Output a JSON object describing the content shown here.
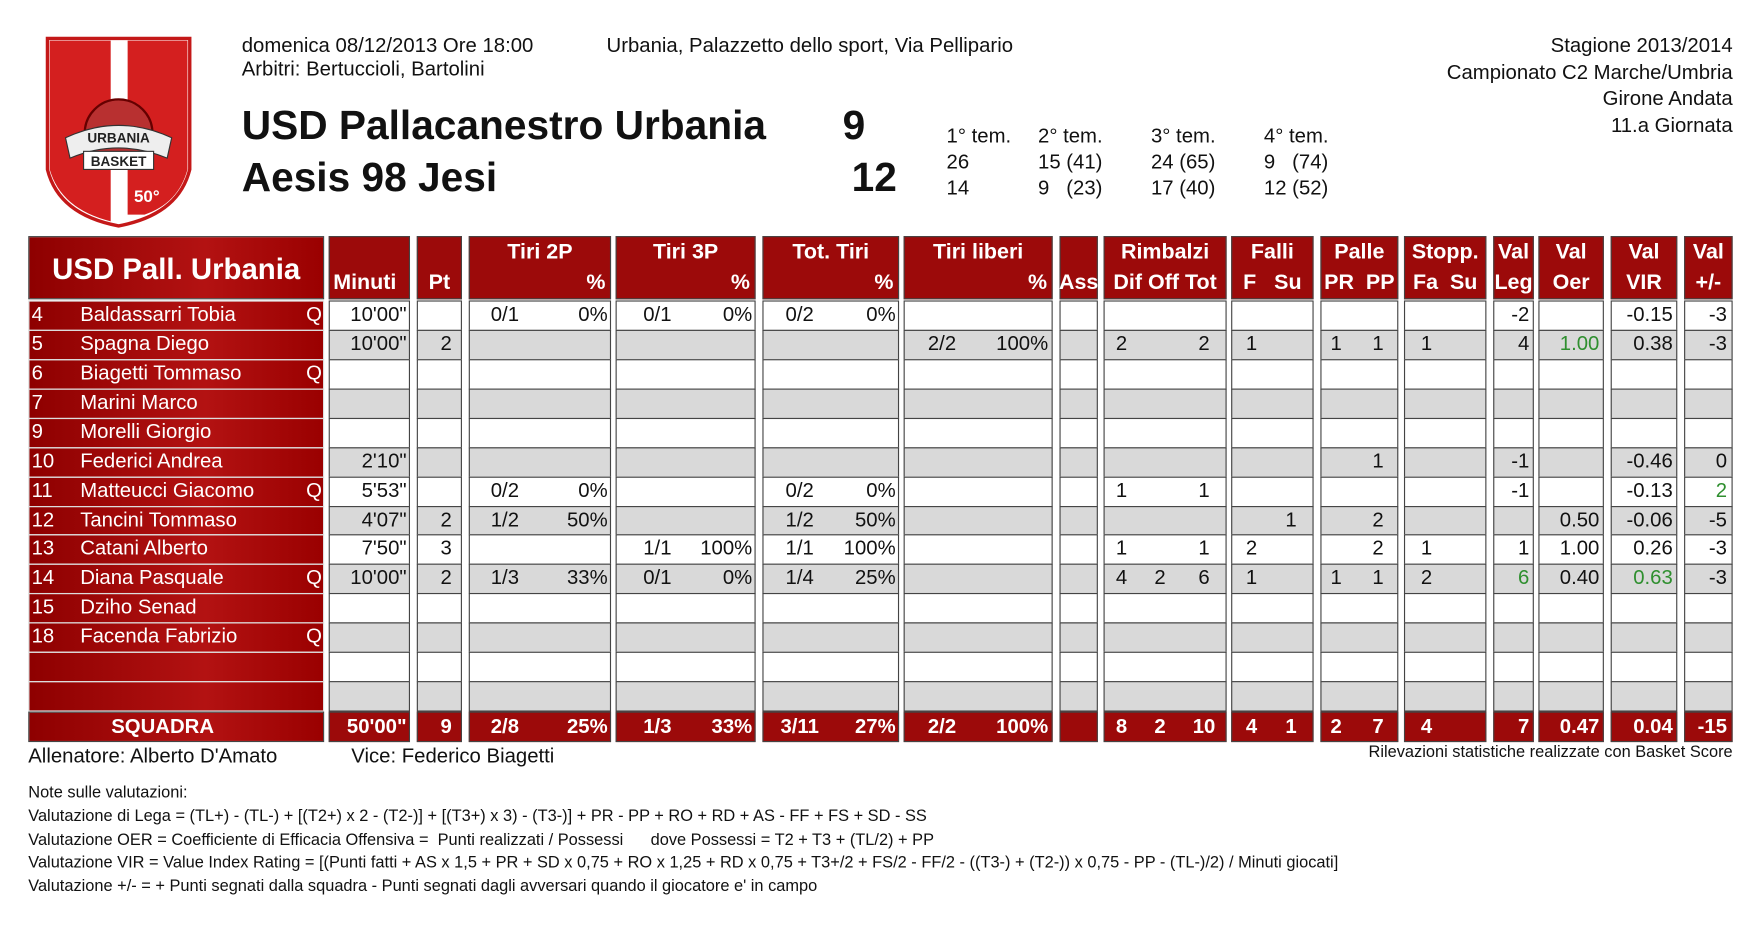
{
  "logo": {
    "top": "URBANIA",
    "bottom": "BASKET",
    "badge": "50°"
  },
  "header": {
    "datetime": "domenica 08/12/2013 Ore 18:00",
    "venue": "Urbania, Palazzetto dello sport, Via Pellipario",
    "referees": "Arbitri: Bertuccioli, Bartolini",
    "teams": [
      {
        "name": "USD Pallacanestro Urbania",
        "score": "9"
      },
      {
        "name": "Aesis 98 Jesi",
        "score": "12"
      }
    ],
    "quarters": {
      "labels": [
        "1° tem.",
        "2° tem.",
        "3° tem.",
        "4° tem."
      ],
      "rows": [
        [
          "26",
          "15 (41)",
          "24 (65)",
          "9   (74)"
        ],
        [
          "14",
          "9   (23)",
          "17 (40)",
          "12 (52)"
        ]
      ]
    },
    "season": [
      "Stagione 2013/2014",
      "Campionato C2 Marche/Umbria",
      "Girone Andata",
      "11.a Giornata"
    ]
  },
  "table": {
    "title": "USD Pall. Urbania",
    "columns": [
      {
        "sub": "Minuti"
      },
      {
        "sub": "Pt"
      },
      {
        "title": "Tiri 2P",
        "sub": "%"
      },
      {
        "title": "Tiri 3P",
        "sub": "%"
      },
      {
        "title": "Tot. Tiri",
        "sub": "%"
      },
      {
        "title": "Tiri liberi",
        "sub": "%"
      },
      {
        "sub": "Ass"
      },
      {
        "title": "Rimbalzi",
        "sub": "Dif Off Tot"
      },
      {
        "title": "Falli",
        "sub": "F   Su"
      },
      {
        "title": "Palle",
        "sub": "PR  PP"
      },
      {
        "title": "Stopp.",
        "sub": "Fa  Su"
      },
      {
        "title": "Val",
        "sub": "Leg"
      },
      {
        "title": "Val",
        "sub": "Oer"
      },
      {
        "title": "Val",
        "sub": "VIR"
      },
      {
        "title": "Val",
        "sub": "+/-"
      }
    ],
    "highlight_color": "#2f8f2f",
    "highlighted_cells": [
      [
        1,
        21
      ],
      [
        6,
        23
      ],
      [
        9,
        20
      ],
      [
        9,
        22
      ]
    ],
    "players": [
      {
        "number": "4",
        "name": "Baldassarri Tobia",
        "q": "Q",
        "stats": [
          "10'00\"",
          null,
          "0/1",
          "0%",
          "0/1",
          "0%",
          "0/2",
          "0%",
          null,
          null,
          null,
          null,
          null,
          null,
          null,
          null,
          null,
          null,
          null,
          null,
          "-2",
          null,
          "-0.15",
          "-3"
        ]
      },
      {
        "number": "5",
        "name": "Spagna Diego",
        "q": null,
        "stats": [
          "10'00\"",
          "2",
          null,
          null,
          null,
          null,
          null,
          null,
          "2/2",
          "100%",
          null,
          "2",
          null,
          "2",
          "1",
          null,
          "1",
          "1",
          "1",
          null,
          "4",
          "1.00",
          "0.38",
          "-3"
        ]
      },
      {
        "number": "6",
        "name": "Biagetti Tommaso",
        "q": "Q",
        "stats": [
          null,
          null,
          null,
          null,
          null,
          null,
          null,
          null,
          null,
          null,
          null,
          null,
          null,
          null,
          null,
          null,
          null,
          null,
          null,
          null,
          null,
          null,
          null,
          null
        ]
      },
      {
        "number": "7",
        "name": "Marini Marco",
        "q": null,
        "stats": [
          null,
          null,
          null,
          null,
          null,
          null,
          null,
          null,
          null,
          null,
          null,
          null,
          null,
          null,
          null,
          null,
          null,
          null,
          null,
          null,
          null,
          null,
          null,
          null
        ]
      },
      {
        "number": "9",
        "name": "Morelli Giorgio",
        "q": null,
        "stats": [
          null,
          null,
          null,
          null,
          null,
          null,
          null,
          null,
          null,
          null,
          null,
          null,
          null,
          null,
          null,
          null,
          null,
          null,
          null,
          null,
          null,
          null,
          null,
          null
        ]
      },
      {
        "number": "10",
        "name": "Federici Andrea",
        "q": null,
        "stats": [
          "2'10\"",
          null,
          null,
          null,
          null,
          null,
          null,
          null,
          null,
          null,
          null,
          null,
          null,
          null,
          null,
          null,
          null,
          "1",
          null,
          null,
          "-1",
          null,
          "-0.46",
          "0"
        ]
      },
      {
        "number": "11",
        "name": "Matteucci Giacomo",
        "q": "Q",
        "stats": [
          "5'53\"",
          null,
          "0/2",
          "0%",
          null,
          null,
          "0/2",
          "0%",
          null,
          null,
          null,
          "1",
          null,
          "1",
          null,
          null,
          null,
          null,
          null,
          null,
          "-1",
          null,
          "-0.13",
          "2"
        ]
      },
      {
        "number": "12",
        "name": "Tancini Tommaso",
        "q": null,
        "stats": [
          "4'07\"",
          "2",
          "1/2",
          "50%",
          null,
          null,
          "1/2",
          "50%",
          null,
          null,
          null,
          null,
          null,
          null,
          null,
          "1",
          null,
          "2",
          null,
          null,
          null,
          "0.50",
          "-0.06",
          "-5"
        ]
      },
      {
        "number": "13",
        "name": "Catani Alberto",
        "q": null,
        "stats": [
          "7'50\"",
          "3",
          null,
          null,
          "1/1",
          "100%",
          "1/1",
          "100%",
          null,
          null,
          null,
          "1",
          null,
          "1",
          "2",
          null,
          null,
          "2",
          "1",
          null,
          "1",
          "1.00",
          "0.26",
          "-3"
        ]
      },
      {
        "number": "14",
        "name": "Diana Pasquale",
        "q": "Q",
        "stats": [
          "10'00\"",
          "2",
          "1/3",
          "33%",
          "0/1",
          "0%",
          "1/4",
          "25%",
          null,
          null,
          null,
          "4",
          "2",
          "6",
          "1",
          null,
          "1",
          "1",
          "2",
          null,
          "6",
          "0.40",
          "0.63",
          "-3"
        ]
      },
      {
        "number": "15",
        "name": "Dziho Senad",
        "q": null,
        "stats": [
          null,
          null,
          null,
          null,
          null,
          null,
          null,
          null,
          null,
          null,
          null,
          null,
          null,
          null,
          null,
          null,
          null,
          null,
          null,
          null,
          null,
          null,
          null,
          null
        ]
      },
      {
        "number": "18",
        "name": "Facenda Fabrizio",
        "q": "Q",
        "stats": [
          null,
          null,
          null,
          null,
          null,
          null,
          null,
          null,
          null,
          null,
          null,
          null,
          null,
          null,
          null,
          null,
          null,
          null,
          null,
          null,
          null,
          null,
          null,
          null
        ]
      }
    ],
    "team": {
      "label": "SQUADRA",
      "stats": [
        "50'00\"",
        "9",
        "2/8",
        "25%",
        "1/3",
        "33%",
        "3/11",
        "27%",
        "2/2",
        "100%",
        null,
        "8",
        "2",
        "10",
        "4",
        "1",
        "2",
        "7",
        "4",
        null,
        "7",
        "0.47",
        "0.04",
        "-15"
      ]
    }
  },
  "footer": {
    "coach": "Allenatore: Alberto D'Amato",
    "assistant": "Vice: Federico Biagetti",
    "credit": "Rilevazioni statistiche realizzate con Basket Score",
    "notes_title": "Note sulle valutazioni:",
    "notes": [
      "Valutazione di Lega = (TL+) - (TL-) + [(T2+) x 2 - (T2-)] + [(T3+) x 3) - (T3-)] + PR - PP + RO + RD + AS - FF + FS + SD - SS",
      "Valutazione OER = Coefficiente di Efficacia Offensiva =  Punti realizzati / Possessi      dove Possessi = T2 + T3 + (TL/2) + PP",
      "Valutazione VIR = Value Index Rating = [(Punti fatti + AS x 1,5 + PR + SD x 0,75 + RO x 1,25 + RD x 0,75 + T3+/2 + FS/2 - FF/2 - ((T3-) + (T2-)) x 0,75 - PP - (TL-)/2) / Minuti giocati]",
      "Valutazione +/- = + Punti segnati dalla squadra - Punti segnati dagli avversari quando il giocatore e' in campo"
    ]
  }
}
